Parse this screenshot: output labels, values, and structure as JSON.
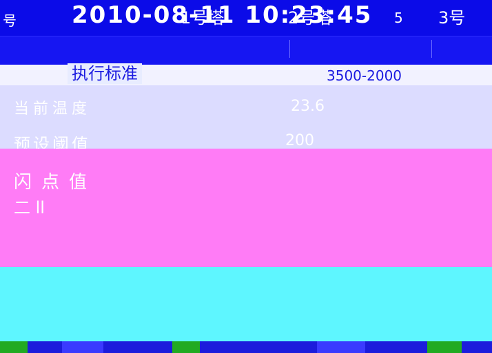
{
  "header": {
    "datetime": "2010-08-11   10:23:45",
    "extra": "5"
  },
  "towers": {
    "left_mark": "号",
    "t1": "1号塔",
    "t2": "2号塔",
    "t3": "3号"
  },
  "standard": {
    "label": "执行标准",
    "value": "3500-2000"
  },
  "temperature": {
    "label": "当前温度",
    "value": "23.6"
  },
  "threshold": {
    "label": "预设阈值",
    "value": "200"
  },
  "alarm": {
    "label": "闪点值",
    "sub": "二 ll"
  },
  "colors": {
    "blue": "#0a0ae6",
    "lavender": "#dcdcff",
    "magenta": "#ff7cf6",
    "cyan": "#5ef6ff"
  }
}
